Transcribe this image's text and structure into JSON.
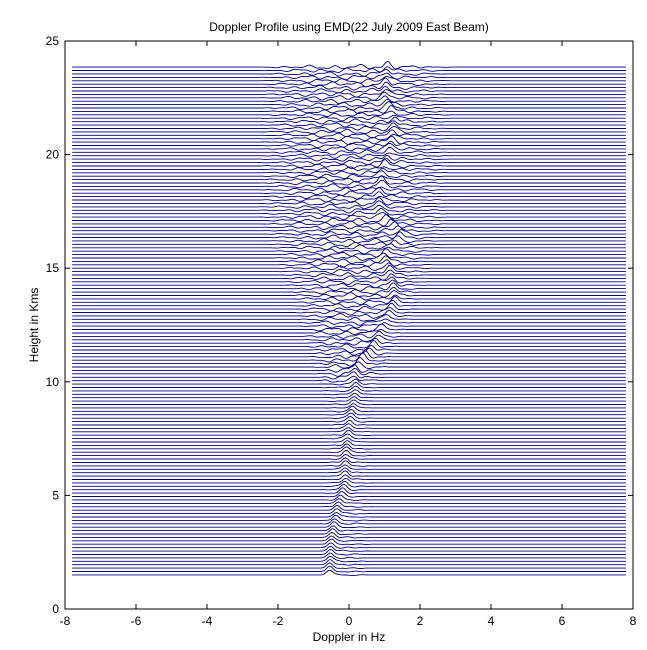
{
  "chart_data": {
    "type": "line",
    "title": "Doppler Profile using EMD(22 July 2009 East Beam)",
    "xlabel": "Doppler in Hz",
    "ylabel": "Height in Kms",
    "xlim": [
      -8,
      8
    ],
    "ylim": [
      0,
      25
    ],
    "x_ticks": [
      -8,
      -6,
      -4,
      -2,
      0,
      2,
      4,
      6,
      8
    ],
    "y_ticks": [
      0,
      5,
      10,
      15,
      20,
      25
    ],
    "x_tick_labels": [
      "-8",
      "-6",
      "-4",
      "-2",
      "0",
      "2",
      "4",
      "6",
      "8"
    ],
    "y_tick_labels": [
      "0",
      "5",
      "10",
      "15",
      "20",
      "25"
    ],
    "grid": false,
    "line_color": "#00007f",
    "profiles": {
      "height_start": 1.5,
      "height_end": 23.85,
      "height_step": 0.15,
      "x_range": [
        -7.8,
        7.8
      ]
    },
    "peak_doppler_vs_height": [
      [
        1.5,
        -0.55
      ],
      [
        3.0,
        -0.5
      ],
      [
        4.5,
        -0.3
      ],
      [
        5.5,
        -0.1
      ],
      [
        6.5,
        -0.1
      ],
      [
        8.0,
        0.0
      ],
      [
        9.5,
        0.2
      ],
      [
        10.5,
        0.15
      ],
      [
        11.5,
        0.7
      ],
      [
        12.5,
        1.0
      ],
      [
        13.5,
        1.3
      ],
      [
        14.5,
        1.2
      ],
      [
        15.5,
        1.0
      ],
      [
        16.5,
        1.5
      ],
      [
        17.5,
        0.8
      ],
      [
        18.5,
        0.9
      ],
      [
        19.5,
        1.0
      ],
      [
        20.5,
        1.2
      ],
      [
        21.5,
        1.3
      ],
      [
        22.5,
        1.0
      ],
      [
        23.85,
        1.1
      ]
    ]
  }
}
